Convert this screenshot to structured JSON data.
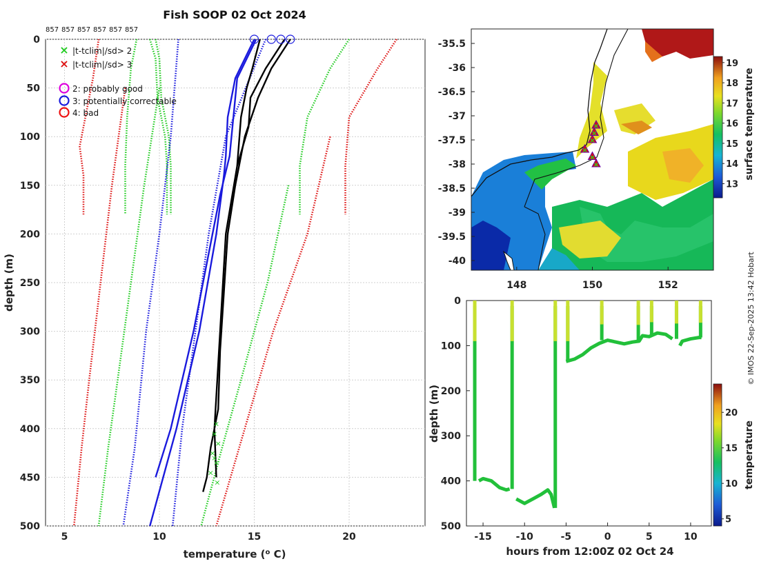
{
  "title": "Fish SOOP 02 Oct 2024",
  "credit": "© IMOS 22-Sep-2025 13:42 Hobart",
  "profile_ids": [
    "857",
    "857",
    "857",
    "857",
    "857",
    "857"
  ],
  "colors": {
    "clim2": "#22cc22",
    "clim3": "#dd1111",
    "flag2": "#dd00dd",
    "flag3": "#1a1add",
    "flag4": "#ee1111",
    "profile_good": "#000000",
    "profile_flag3": "#1a1add",
    "grid": "#cfcfcf"
  },
  "legend": [
    {
      "symbol": "x",
      "color_key": "clim2",
      "label": "|t-tclim|/sd> 2"
    },
    {
      "symbol": "x",
      "color_key": "clim3",
      "label": "|t-tclim|/sd> 3"
    },
    {
      "symbol": "o",
      "color_key": "flag2",
      "label": "2: probably good"
    },
    {
      "symbol": "o",
      "color_key": "flag3",
      "label": "3: potentially correctable"
    },
    {
      "symbol": "o",
      "color_key": "flag4",
      "label": "4: bad"
    }
  ],
  "chart_data": [
    {
      "id": "profiles",
      "type": "line",
      "xlabel": "temperature (",
      "xlabel_unit": "o",
      "xlabel_end": " C)",
      "ylabel": "depth (m)",
      "xlim": [
        4,
        24
      ],
      "ylim": [
        0,
        500
      ],
      "y_reversed": true,
      "xticks": [
        5,
        10,
        15,
        20
      ],
      "yticks": [
        0,
        50,
        100,
        150,
        200,
        250,
        300,
        350,
        400,
        450,
        500
      ],
      "grid": true,
      "series": [
        {
          "name": "clim +2sd left",
          "style": "dotted",
          "color_key": "clim2",
          "depth": [
            0,
            20,
            60,
            100,
            130,
            180
          ],
          "temp": [
            9.8,
            10.0,
            10.1,
            10.5,
            10.6,
            10.6
          ]
        },
        {
          "name": "clim +2sd left b",
          "style": "dotted",
          "color_key": "clim2",
          "depth": [
            0,
            20,
            60,
            100,
            130,
            180
          ],
          "temp": [
            9.5,
            9.8,
            9.9,
            10.3,
            10.4,
            10.4
          ]
        },
        {
          "name": "clim -2sd cold",
          "style": "dotted",
          "color_key": "clim2",
          "depth": [
            0,
            30,
            80,
            130,
            180
          ],
          "temp": [
            8.8,
            8.5,
            8.3,
            8.2,
            8.2
          ]
        },
        {
          "name": "clim -3sd cold",
          "style": "dotted",
          "color_key": "clim3",
          "depth": [
            0,
            40,
            90,
            110,
            140,
            180
          ],
          "temp": [
            6.8,
            6.5,
            6.0,
            5.8,
            6.0,
            6.0
          ]
        },
        {
          "name": "clim +2sd warm",
          "style": "dotted",
          "color_key": "clim2",
          "depth": [
            0,
            30,
            80,
            130,
            180
          ],
          "temp": [
            20.0,
            19.0,
            17.8,
            17.4,
            17.4
          ]
        },
        {
          "name": "clim +3sd warm",
          "style": "dotted",
          "color_key": "clim3",
          "depth": [
            0,
            30,
            80,
            130,
            180
          ],
          "temp": [
            22.5,
            21.5,
            20.0,
            19.8,
            19.8
          ]
        },
        {
          "name": "clim -3sd deep",
          "style": "dotted",
          "color_key": "clim3",
          "depth": [
            50,
            150,
            250,
            350,
            420,
            500
          ],
          "temp": [
            8.2,
            7.5,
            6.9,
            6.3,
            5.9,
            5.5
          ]
        },
        {
          "name": "clim -2sd deep",
          "style": "dotted",
          "color_key": "clim2",
          "depth": [
            50,
            150,
            250,
            350,
            420,
            500
          ],
          "temp": [
            10.0,
            9.2,
            8.5,
            7.8,
            7.3,
            6.8
          ]
        },
        {
          "name": "clim -2sd deep b",
          "style": "dotted",
          "color_key": "flag3",
          "depth": [
            0,
            100,
            200,
            300,
            420,
            500
          ],
          "temp": [
            11.0,
            10.6,
            10.0,
            9.3,
            8.7,
            8.1
          ]
        },
        {
          "name": "clim mean deep",
          "style": "dotted",
          "color_key": "flag3",
          "depth": [
            0,
            100,
            200,
            300,
            400,
            500
          ],
          "temp": [
            15.6,
            13.5,
            12.6,
            11.9,
            11.2,
            10.7
          ]
        },
        {
          "name": "clim +2sd deep",
          "style": "dotted",
          "color_key": "clim2",
          "depth": [
            150,
            250,
            350,
            420,
            500
          ],
          "temp": [
            16.8,
            15.7,
            14.3,
            13.3,
            12.2
          ]
        },
        {
          "name": "clim +3sd deep",
          "style": "dotted",
          "color_key": "clim3",
          "depth": [
            100,
            200,
            300,
            400,
            500
          ],
          "temp": [
            19.0,
            17.8,
            16.0,
            14.5,
            13.0
          ]
        },
        {
          "name": "profile flag3 a",
          "style": "solid",
          "color_key": "profile_flag3",
          "depth": [
            0,
            40,
            80,
            120,
            160,
            200,
            300,
            400,
            450
          ],
          "temp": [
            15.1,
            14.1,
            13.9,
            13.7,
            13.2,
            12.8,
            11.8,
            10.6,
            9.8
          ]
        },
        {
          "name": "profile flag3 b",
          "style": "solid",
          "color_key": "profile_flag3",
          "depth": [
            0,
            40,
            80,
            120,
            140,
            200,
            300,
            400,
            500
          ],
          "temp": [
            15.0,
            14.0,
            13.6,
            13.5,
            13.4,
            13.0,
            12.1,
            10.9,
            9.5
          ]
        },
        {
          "name": "profile good a",
          "style": "solid",
          "color_key": "profile_good",
          "depth": [
            0,
            30,
            60,
            100,
            150,
            200,
            260,
            320,
            380,
            420,
            450,
            465
          ],
          "temp": [
            16.9,
            15.9,
            15.2,
            14.5,
            14.0,
            13.6,
            13.4,
            13.2,
            13.1,
            12.7,
            12.5,
            12.3
          ]
        },
        {
          "name": "profile good b",
          "style": "solid",
          "color_key": "profile_good",
          "depth": [
            0,
            30,
            60,
            90,
            130,
            200,
            300,
            400,
            450
          ],
          "temp": [
            16.6,
            15.6,
            14.8,
            14.7,
            14.1,
            13.5,
            13.2,
            12.9,
            13.0
          ]
        },
        {
          "name": "profile good c",
          "style": "solid",
          "color_key": "profile_good",
          "depth": [
            0,
            30,
            50,
            80,
            130
          ],
          "temp": [
            15.3,
            14.9,
            14.6,
            14.3,
            14.1
          ]
        }
      ],
      "qc_markers": [
        {
          "name": "surface flag3 1",
          "depth": 0,
          "temp": 15.0,
          "color_key": "flag3"
        },
        {
          "name": "surface flag3 2",
          "depth": 0,
          "temp": 15.9,
          "color_key": "flag3"
        },
        {
          "name": "surface flag3 3",
          "depth": 0,
          "temp": 16.4,
          "color_key": "flag3"
        },
        {
          "name": "surface flag3 4",
          "depth": 0,
          "temp": 16.9,
          "color_key": "flag3"
        }
      ]
    },
    {
      "id": "sst_map",
      "type": "heatmap",
      "xticks": [
        148,
        150,
        152
      ],
      "xlim": [
        146.8,
        153.2
      ],
      "yticks": [
        -35.5,
        -36,
        -36.5,
        -37,
        -37.5,
        -38,
        -38.5,
        -39,
        -39.5,
        -40
      ],
      "ylim": [
        -40.2,
        -35.2
      ],
      "colorbar_label": "surface temperature",
      "colorbar_ticks": [
        13,
        14,
        15,
        16,
        17,
        18,
        19
      ],
      "colorbar_range": [
        12.3,
        19.3
      ],
      "track_points": [
        {
          "lon": 150.1,
          "lat": -37.2
        },
        {
          "lon": 150.05,
          "lat": -37.35
        },
        {
          "lon": 150.0,
          "lat": -37.5
        },
        {
          "lon": 149.8,
          "lat": -37.7
        },
        {
          "lon": 150.0,
          "lat": -37.85
        },
        {
          "lon": 150.1,
          "lat": -38.0
        }
      ]
    },
    {
      "id": "section",
      "type": "line",
      "xlabel": "hours from 12:00Z 02 Oct 24",
      "ylabel": "depth (m)",
      "xlim": [
        -17,
        12.5
      ],
      "ylim": [
        0,
        500
      ],
      "y_reversed": true,
      "xticks": [
        -15,
        -10,
        -5,
        0,
        5,
        10
      ],
      "yticks": [
        0,
        100,
        200,
        300,
        400,
        500
      ],
      "colorbar_label": "temperature",
      "colorbar_ticks": [
        5,
        10,
        15,
        20
      ],
      "colorbar_range": [
        4,
        24
      ],
      "bottom_trace": {
        "hours": [
          -16.0,
          -15.5,
          -15,
          -14,
          -13,
          -12.2,
          -11.8,
          -11.4,
          -11,
          -10,
          -9,
          -8,
          -7.2,
          -6.8,
          -6.4,
          -5.8,
          -5,
          -4,
          -3,
          -2,
          -1,
          0,
          1,
          2,
          3,
          3.8,
          4.2,
          5,
          6,
          7,
          7.8,
          8.2,
          8.7,
          9,
          10,
          11,
          11.3
        ],
        "depth": [
          null,
          400,
          395,
          400,
          415,
          420,
          418,
          null,
          440,
          450,
          440,
          430,
          420,
          430,
          460,
          null,
          135,
          130,
          120,
          105,
          95,
          88,
          92,
          96,
          92,
          90,
          78,
          80,
          72,
          75,
          85,
          null,
          100,
          90,
          85,
          82,
          82
        ]
      },
      "casts": [
        {
          "hours": -16.0,
          "surface_depth": 0
        },
        {
          "hours": -11.5,
          "surface_depth": 0
        },
        {
          "hours": -6.3,
          "surface_depth": 0
        },
        {
          "hours": -4.8,
          "surface_depth": 0
        },
        {
          "hours": -0.7,
          "surface_depth": 0
        },
        {
          "hours": 3.7,
          "surface_depth": 0
        },
        {
          "hours": 5.3,
          "surface_depth": 0
        },
        {
          "hours": 8.3,
          "surface_depth": 0
        },
        {
          "hours": 11.2,
          "surface_depth": 0
        }
      ]
    }
  ]
}
